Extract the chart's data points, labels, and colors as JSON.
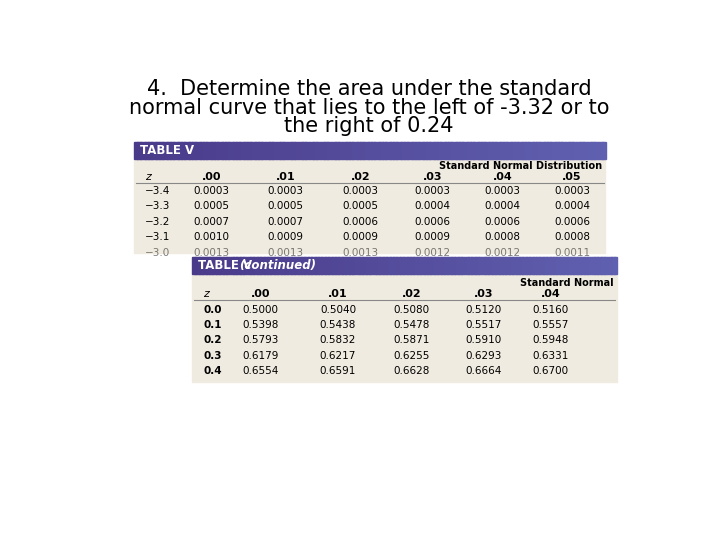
{
  "title_line1": "4.  Determine the area under the standard",
  "title_line2": "normal curve that lies to the left of -3.32 or to",
  "title_line3": "the right of 0.24",
  "title_fontsize": 15,
  "bg_color": "#ffffff",
  "table1": {
    "header_bg_left": "#4a3a8a",
    "header_bg_right": "#6060b0",
    "header_text": "TABLE V",
    "body_bg": "#f0ebe0",
    "label_row": [
      "z",
      ".00",
      ".01",
      ".02",
      ".03",
      ".04",
      ".05"
    ],
    "sublabel": "Standard Normal Distribution",
    "rows": [
      [
        "−3.4",
        "0.0003",
        "0.0003",
        "0.0003",
        "0.0003",
        "0.0003",
        "0.0003"
      ],
      [
        "−3.3",
        "0.0005",
        "0.0005",
        "0.0005",
        "0.0004",
        "0.0004",
        "0.0004"
      ],
      [
        "−3.2",
        "0.0007",
        "0.0007",
        "0.0006",
        "0.0006",
        "0.0006",
        "0.0006"
      ],
      [
        "−3.1",
        "0.0010",
        "0.0009",
        "0.0009",
        "0.0009",
        "0.0008",
        "0.0008"
      ],
      [
        "−3.0",
        "0.0013",
        "0.0013",
        "0.0013",
        "0.0012",
        "0.0012",
        "0.0011"
      ]
    ]
  },
  "table2": {
    "header_bg_left": "#4a3a8a",
    "header_bg_right": "#6060b0",
    "header_text_bold": "TABLE V ",
    "header_text_italic": "(continued)",
    "body_bg": "#f0ebe0",
    "label_row": [
      "z",
      ".00",
      ".01",
      ".02",
      ".03",
      ".04"
    ],
    "sublabel": "Standard Normal",
    "rows": [
      [
        "0.0",
        "0.5000",
        "0.5040",
        "0.5080",
        "0.5120",
        "0.5160"
      ],
      [
        "0.1",
        "0.5398",
        "0.5438",
        "0.5478",
        "0.5517",
        "0.5557"
      ],
      [
        "0.2",
        "0.5793",
        "0.5832",
        "0.5871",
        "0.5910",
        "0.5948"
      ],
      [
        "0.3",
        "0.6179",
        "0.6217",
        "0.6255",
        "0.6293",
        "0.6331"
      ],
      [
        "0.4",
        "0.6554",
        "0.6591",
        "0.6628",
        "0.6664",
        "0.6700"
      ]
    ]
  }
}
